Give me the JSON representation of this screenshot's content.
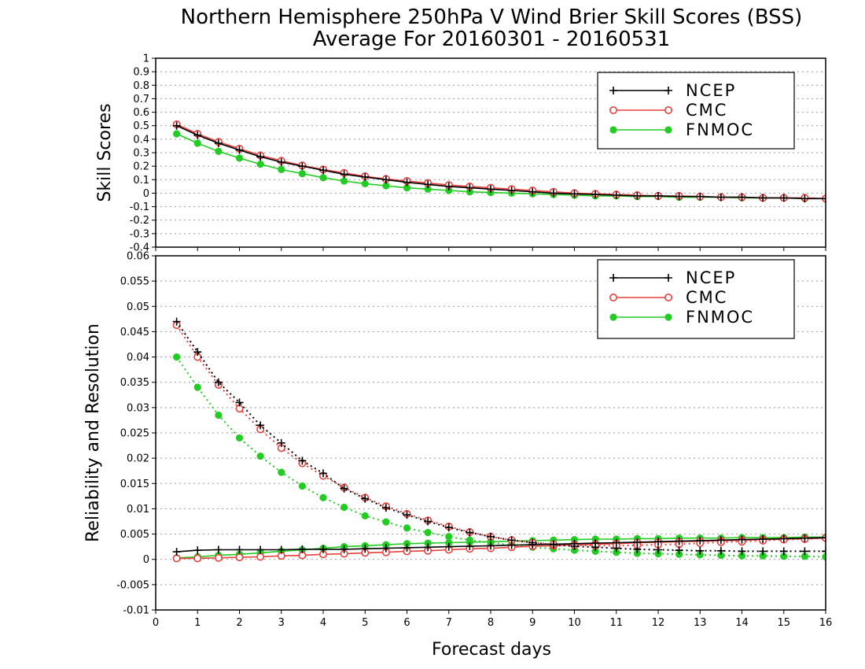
{
  "title_line1": "Northern Hemisphere 250hPa V Wind Brier Skill Scores (BSS)",
  "title_line2": "Average For 20160301 - 20160531",
  "xlabel": "Forecast days",
  "colors": {
    "NCEP": "#000000",
    "CMC": "#e8403c",
    "FNMOC": "#22cc22"
  },
  "chart_data": [
    {
      "type": "line",
      "ylabel": "Skill Scores",
      "xlim": [
        0,
        16
      ],
      "ylim": [
        -0.4,
        1
      ],
      "x_ticks": [
        0,
        1,
        2,
        3,
        4,
        5,
        6,
        7,
        8,
        9,
        10,
        11,
        12,
        13,
        14,
        15,
        16
      ],
      "y_ticks": [
        -0.4,
        -0.3,
        -0.2,
        -0.1,
        0,
        0.1,
        0.2,
        0.3,
        0.4,
        0.5,
        0.6,
        0.7,
        0.8,
        0.9,
        1
      ],
      "y_tick_labels": [
        "-0.4",
        "-0.3",
        "-0.2",
        "-0.1",
        "0",
        "0.1",
        "0.2",
        "0.3",
        "0.4",
        "0.5",
        "0.6",
        "0.7",
        "0.8",
        "0.9",
        "1"
      ],
      "grid": "horizontal-dotted",
      "legend_position": "top-right",
      "x": [
        0.5,
        1,
        1.5,
        2,
        2.5,
        3,
        3.5,
        4,
        4.5,
        5,
        5.5,
        6,
        6.5,
        7,
        7.5,
        8,
        8.5,
        9,
        9.5,
        10,
        10.5,
        11,
        11.5,
        12,
        12.5,
        13,
        13.5,
        14,
        14.5,
        15,
        15.5,
        16
      ],
      "series": [
        {
          "name": "NCEP",
          "marker": "plus",
          "style": "solid",
          "values": [
            0.5,
            0.43,
            0.37,
            0.32,
            0.27,
            0.23,
            0.2,
            0.17,
            0.14,
            0.12,
            0.1,
            0.08,
            0.065,
            0.05,
            0.04,
            0.03,
            0.02,
            0.01,
            0.0,
            -0.005,
            -0.01,
            -0.015,
            -0.02,
            -0.02,
            -0.025,
            -0.025,
            -0.03,
            -0.03,
            -0.035,
            -0.035,
            -0.04,
            -0.04
          ]
        },
        {
          "name": "CMC",
          "marker": "open-circle",
          "style": "solid",
          "values": [
            0.51,
            0.44,
            0.38,
            0.33,
            0.28,
            0.24,
            0.205,
            0.175,
            0.15,
            0.125,
            0.105,
            0.09,
            0.075,
            0.06,
            0.05,
            0.04,
            0.03,
            0.02,
            0.01,
            0.0,
            -0.005,
            -0.01,
            -0.015,
            -0.02,
            -0.02,
            -0.025,
            -0.03,
            -0.03,
            -0.035,
            -0.035,
            -0.035,
            -0.04
          ]
        },
        {
          "name": "FNMOC",
          "marker": "filled-circle",
          "style": "solid",
          "values": [
            0.44,
            0.37,
            0.31,
            0.26,
            0.215,
            0.175,
            0.145,
            0.115,
            0.09,
            0.07,
            0.055,
            0.04,
            0.03,
            0.02,
            0.01,
            0.005,
            0.0,
            -0.005,
            -0.01,
            -0.015,
            -0.02,
            -0.02,
            -0.025,
            -0.025,
            -0.03,
            -0.03,
            -0.03,
            -0.035,
            -0.035,
            -0.035,
            -0.04,
            -0.04
          ]
        }
      ]
    },
    {
      "type": "line",
      "ylabel": "Reliability and Resolution",
      "xlim": [
        0,
        16
      ],
      "ylim": [
        -0.01,
        0.06
      ],
      "x_ticks": [
        0,
        1,
        2,
        3,
        4,
        5,
        6,
        7,
        8,
        9,
        10,
        11,
        12,
        13,
        14,
        15,
        16
      ],
      "y_ticks": [
        -0.01,
        -0.005,
        0,
        0.005,
        0.01,
        0.015,
        0.02,
        0.025,
        0.03,
        0.035,
        0.04,
        0.045,
        0.05,
        0.055,
        0.06
      ],
      "y_tick_labels": [
        "-0.01",
        "-0.005",
        "0",
        "0.005",
        "0.01",
        "0.015",
        "0.02",
        "0.025",
        "0.03",
        "0.035",
        "0.04",
        "0.045",
        "0.05",
        "0.055",
        "0.06"
      ],
      "grid": "horizontal-dotted",
      "legend_position": "top-right",
      "x": [
        0.5,
        1,
        1.5,
        2,
        2.5,
        3,
        3.5,
        4,
        4.5,
        5,
        5.5,
        6,
        6.5,
        7,
        7.5,
        8,
        8.5,
        9,
        9.5,
        10,
        10.5,
        11,
        11.5,
        12,
        12.5,
        13,
        13.5,
        14,
        14.5,
        15,
        15.5,
        16
      ],
      "series": [
        {
          "name": "NCEP",
          "metric": "resolution",
          "marker": "plus",
          "style": "solid",
          "values": [
            0.0015,
            0.0018,
            0.0019,
            0.0019,
            0.0019,
            0.0019,
            0.002,
            0.002,
            0.002,
            0.0021,
            0.0022,
            0.0023,
            0.0024,
            0.0025,
            0.0026,
            0.0027,
            0.0028,
            0.0029,
            0.003,
            0.0031,
            0.0032,
            0.0033,
            0.0034,
            0.0035,
            0.0036,
            0.0037,
            0.0038,
            0.0039,
            0.004,
            0.0041,
            0.0042,
            0.0043
          ]
        },
        {
          "name": "CMC",
          "metric": "resolution",
          "marker": "open-circle",
          "style": "solid",
          "values": [
            0.0002,
            0.0002,
            0.0003,
            0.0004,
            0.0005,
            0.0007,
            0.0008,
            0.001,
            0.0011,
            0.0013,
            0.0014,
            0.0016,
            0.0017,
            0.0019,
            0.0021,
            0.0022,
            0.0024,
            0.0026,
            0.0027,
            0.0029,
            0.003,
            0.0031,
            0.0033,
            0.0034,
            0.0035,
            0.0036,
            0.0037,
            0.0038,
            0.0039,
            0.004,
            0.0041,
            0.0042
          ]
        },
        {
          "name": "FNMOC",
          "metric": "resolution",
          "marker": "filled-circle",
          "style": "solid",
          "values": [
            0.0003,
            0.0005,
            0.0008,
            0.001,
            0.0013,
            0.0016,
            0.0019,
            0.0022,
            0.0025,
            0.0027,
            0.0029,
            0.0031,
            0.0032,
            0.0033,
            0.0034,
            0.0035,
            0.0036,
            0.0037,
            0.0038,
            0.0039,
            0.004,
            0.004,
            0.0041,
            0.0041,
            0.0042,
            0.0042,
            0.0042,
            0.0043,
            0.0043,
            0.0043,
            0.0044,
            0.0044
          ]
        },
        {
          "name": "NCEP",
          "metric": "reliability",
          "marker": "plus",
          "style": "dotted",
          "values": [
            0.047,
            0.041,
            0.035,
            0.031,
            0.0265,
            0.023,
            0.0195,
            0.017,
            0.014,
            0.012,
            0.0102,
            0.0088,
            0.0075,
            0.0063,
            0.0053,
            0.0045,
            0.0038,
            0.0033,
            0.0029,
            0.0026,
            0.0024,
            0.0022,
            0.002,
            0.0019,
            0.0018,
            0.0017,
            0.0017,
            0.0016,
            0.0016,
            0.0016,
            0.0016,
            0.0016
          ]
        },
        {
          "name": "CMC",
          "metric": "reliability",
          "marker": "open-circle",
          "style": "dotted",
          "values": [
            0.0463,
            0.04,
            0.0345,
            0.0298,
            0.0257,
            0.022,
            0.019,
            0.0165,
            0.0142,
            0.0122,
            0.0105,
            0.009,
            0.0077,
            0.0065,
            0.0054,
            0.0045,
            0.0038,
            0.0033,
            0.003,
            0.0028,
            0.0027,
            0.0027,
            0.0028,
            0.0029,
            0.003,
            0.0032,
            0.0034,
            0.0035,
            0.0037,
            0.0039,
            0.004,
            0.0042
          ]
        },
        {
          "name": "FNMOC",
          "metric": "reliability",
          "marker": "filled-circle",
          "style": "dotted",
          "values": [
            0.04,
            0.034,
            0.0285,
            0.024,
            0.0204,
            0.0172,
            0.0145,
            0.0122,
            0.0103,
            0.0086,
            0.0074,
            0.0062,
            0.0053,
            0.0045,
            0.0038,
            0.0033,
            0.0028,
            0.0024,
            0.0021,
            0.0018,
            0.0016,
            0.0014,
            0.0012,
            0.0011,
            0.001,
            0.0009,
            0.0008,
            0.0007,
            0.0007,
            0.0006,
            0.0006,
            0.0005
          ]
        }
      ]
    }
  ]
}
